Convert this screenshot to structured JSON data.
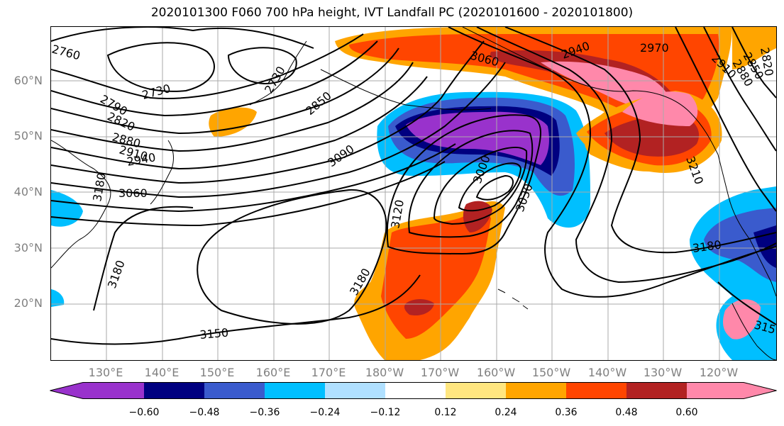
{
  "title": "2020101300 F060 700 hPa height, IVT Landfall PC (2020101600 - 2020101800)",
  "lat_labels": [
    "60°N",
    "50°N",
    "40°N",
    "30°N",
    "20°N"
  ],
  "lon_labels": [
    "130°E",
    "140°E",
    "150°E",
    "160°E",
    "170°E",
    "180°W",
    "170°W",
    "160°W",
    "150°W",
    "140°W",
    "130°W",
    "120°W"
  ],
  "contour_labels": [
    "2760",
    "2730",
    "2730",
    "2790",
    "2820",
    "2850",
    "2880",
    "2910",
    "2940",
    "3060",
    "3090",
    "3000",
    "3030",
    "3060",
    "3120",
    "3180",
    "3180",
    "3180",
    "3150",
    "2940",
    "2970",
    "2850",
    "2880",
    "2910",
    "2820",
    "3210",
    "3180",
    "315"
  ],
  "colorbar": {
    "ticks": [
      "−0.60",
      "−0.48",
      "−0.36",
      "−0.24",
      "−0.12",
      "0.12",
      "0.24",
      "0.36",
      "0.48",
      "0.60"
    ],
    "colors": [
      "#9932cc",
      "#000080",
      "#3a5bcd",
      "#00bfff",
      "#b0e0ff",
      "#ffffff",
      "#ffe680",
      "#ffa500",
      "#ff4500",
      "#b22222",
      "#ff88aa"
    ]
  }
}
